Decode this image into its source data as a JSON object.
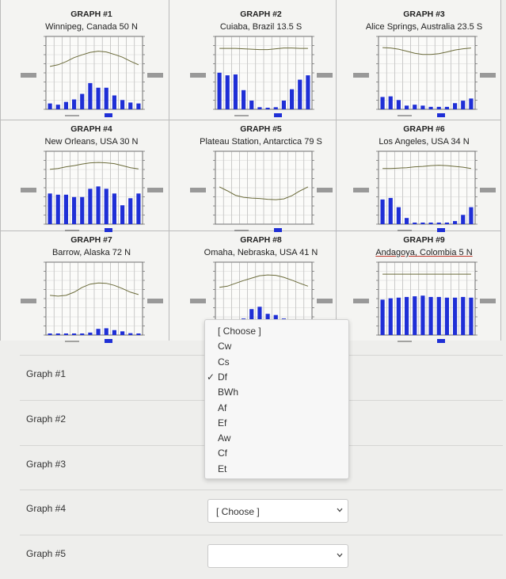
{
  "graphs": [
    {
      "title": "GRAPH #1",
      "subtitle": "Winnipeg, Canada 50 N",
      "temp": [
        -18,
        -14,
        -6,
        4,
        11,
        17,
        20,
        18,
        12,
        5,
        -5,
        -14
      ],
      "precip": [
        19,
        15,
        24,
        32,
        50,
        85,
        70,
        70,
        45,
        30,
        22,
        19
      ]
    },
    {
      "title": "GRAPH #2",
      "subtitle": "Cuiaba, Brazil  13.5 S",
      "temp": [
        27,
        27,
        27,
        26,
        25,
        24,
        24,
        26,
        28,
        28,
        27,
        27
      ],
      "precip": [
        210,
        195,
        200,
        110,
        50,
        12,
        8,
        12,
        50,
        115,
        170,
        195
      ]
    },
    {
      "title": "GRAPH #3",
      "subtitle": "Alice Springs, Australia 23.5 S",
      "temp": [
        29,
        28,
        25,
        20,
        15,
        12,
        12,
        14,
        18,
        23,
        26,
        28
      ],
      "precip": [
        40,
        42,
        30,
        12,
        15,
        12,
        8,
        8,
        8,
        20,
        28,
        35
      ]
    },
    {
      "title": "GRAPH #4",
      "subtitle": "New Orleans, USA  30 N",
      "temp": [
        12,
        14,
        18,
        21,
        25,
        28,
        29,
        28,
        26,
        21,
        16,
        13
      ],
      "precip": [
        130,
        125,
        125,
        115,
        115,
        150,
        160,
        150,
        130,
        80,
        110,
        130
      ]
    },
    {
      "title": "GRAPH #5",
      "subtitle": "Plateau Station, Antarctica 79 S",
      "temp": [
        -32,
        -42,
        -53,
        -58,
        -60,
        -61,
        -63,
        -64,
        -62,
        -54,
        -42,
        -32
      ],
      "precip": [
        0,
        0,
        0,
        0,
        0,
        0,
        0,
        0,
        0,
        0,
        0,
        0
      ]
    },
    {
      "title": "GRAPH #6",
      "subtitle": "Los Angeles, USA 34 N",
      "temp": [
        14,
        14,
        15,
        16,
        18,
        19,
        21,
        22,
        21,
        19,
        17,
        14
      ],
      "precip": [
        80,
        85,
        55,
        20,
        5,
        2,
        1,
        2,
        5,
        10,
        30,
        55
      ]
    },
    {
      "title": "GRAPH #7",
      "subtitle": "Barrow, Alaska 72 N",
      "temp": [
        -26,
        -28,
        -26,
        -18,
        -6,
        2,
        5,
        4,
        -1,
        -9,
        -18,
        -24
      ],
      "precip": [
        4,
        4,
        4,
        4,
        4,
        8,
        20,
        22,
        16,
        12,
        6,
        5
      ]
    },
    {
      "title": "GRAPH #8",
      "subtitle": "Omaha, Nebraska, USA 41 N",
      "temp": [
        -6,
        -3,
        4,
        11,
        17,
        23,
        25,
        24,
        19,
        12,
        4,
        -3
      ],
      "precip": [
        18,
        20,
        50,
        70,
        110,
        120,
        90,
        85,
        70,
        45,
        30,
        20
      ]
    },
    {
      "title": "GRAPH #9",
      "subtitle": "Andagoya, Colombia 5 N",
      "temp": [
        27,
        27,
        27,
        27,
        27,
        27,
        27,
        27,
        27,
        27,
        27,
        27
      ],
      "precip": [
        530,
        550,
        560,
        570,
        580,
        590,
        570,
        570,
        560,
        560,
        570,
        560
      ]
    }
  ],
  "questions": [
    {
      "label": "Graph #1",
      "value": ""
    },
    {
      "label": "Graph #2",
      "value": ""
    },
    {
      "label": "Graph #3",
      "value": ""
    },
    {
      "label": "Graph #4",
      "value": "[ Choose ]"
    },
    {
      "label": "Graph #5",
      "value": ""
    }
  ],
  "dropdown": {
    "items": [
      "[ Choose ]",
      "Cw",
      "Cs",
      "Df",
      "BWh",
      "Af",
      "Ef",
      "Aw",
      "Cf",
      "Et"
    ],
    "selected": "Df"
  },
  "colors": {
    "bars": "#1f2fd6",
    "temp_line": "#6b6b3a",
    "grid": "#6e6e6e",
    "accent_red": "#c0392b"
  }
}
